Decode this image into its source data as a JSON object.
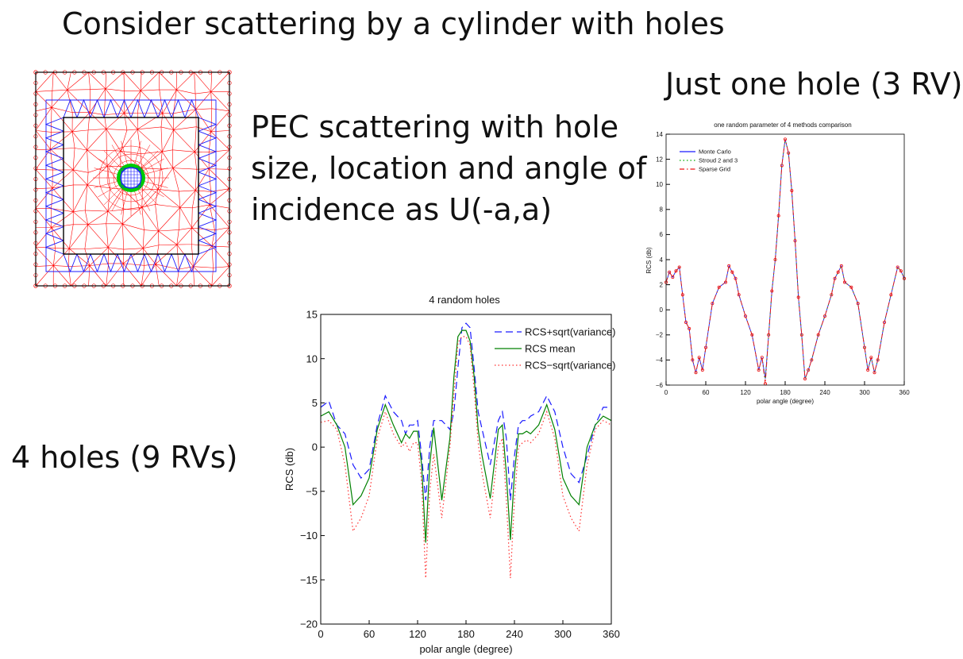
{
  "slide": {
    "title": "Consider scattering by a cylinder with holes",
    "description_lines": [
      "PEC scattering with hole",
      "size, location and angle of",
      "incidence as U(-a,a)"
    ],
    "one_hole_label": "Just one hole (3 RV)",
    "four_holes_label": "4 holes (9 RVs)"
  },
  "colors": {
    "mesh_outer": "#ff0000",
    "mesh_inner": "#1a1aff",
    "mesh_hole": "#00cc00",
    "frame": "#000000"
  },
  "chart_data": [
    {
      "type": "line",
      "title": "4 random holes",
      "xlabel": "polar angle (degree)",
      "ylabel": "RCS (db)",
      "xlim": [
        0,
        360
      ],
      "ylim": [
        -20,
        15
      ],
      "xticks": [
        0,
        60,
        120,
        180,
        240,
        300,
        360
      ],
      "yticks": [
        15,
        10,
        5,
        0,
        -5,
        -10,
        -15,
        -20
      ],
      "legend_position": "top-right",
      "x": [
        0,
        10,
        20,
        30,
        40,
        50,
        60,
        70,
        80,
        90,
        100,
        105,
        110,
        115,
        120,
        125,
        130,
        135,
        140,
        150,
        160,
        165,
        170,
        175,
        180,
        185,
        190,
        195,
        200,
        210,
        220,
        225,
        230,
        235,
        240,
        245,
        250,
        255,
        260,
        270,
        280,
        290,
        300,
        310,
        320,
        330,
        340,
        350,
        360
      ],
      "series": [
        {
          "name": "RCS+sqrt(variance)",
          "color": "#1a1aff",
          "dash": "dashed",
          "values": [
            4.5,
            5.2,
            2.5,
            1.5,
            -2,
            -3.5,
            -2.5,
            2.5,
            5.8,
            4,
            3,
            1.5,
            2.5,
            2.5,
            3,
            -1,
            -6,
            0,
            3,
            3,
            2,
            4,
            9,
            13.5,
            14,
            13.5,
            9,
            4,
            2,
            -2,
            3,
            4,
            1,
            -6,
            -1,
            2.5,
            3,
            3,
            3.5,
            4,
            5.8,
            4,
            0,
            -3,
            -4,
            -1,
            2.5,
            4.5,
            4.5
          ]
        },
        {
          "name": "RCS mean",
          "color": "#008000",
          "dash": "solid",
          "values": [
            3.5,
            4.0,
            2.5,
            0,
            -6.5,
            -5.5,
            -3.5,
            2.0,
            4.8,
            2.5,
            0.5,
            1.5,
            1.0,
            1.8,
            1.8,
            -2.0,
            -10.8,
            -2.0,
            2.2,
            -6,
            1.0,
            8.0,
            12.5,
            13.2,
            13.2,
            12.0,
            8.0,
            2.0,
            -1.0,
            -5.8,
            2.0,
            2.5,
            -3.0,
            -10.5,
            -3.0,
            1.5,
            1.5,
            1.8,
            1.5,
            2.5,
            4.8,
            2.0,
            -3.5,
            -5.5,
            -6.5,
            0,
            2.5,
            3.5,
            3.0
          ]
        },
        {
          "name": "RCS−sqrt(variance)",
          "color": "#ff3030",
          "dash": "dotted",
          "values": [
            2.8,
            3.0,
            2.0,
            -2,
            -9.5,
            -8,
            -5.5,
            1.0,
            4.0,
            1.5,
            0,
            0.5,
            -0.5,
            0.5,
            0.5,
            -4,
            -14.8,
            -5,
            -0.8,
            -8,
            0,
            6,
            11.8,
            12.5,
            12.5,
            11.5,
            6.5,
            0.5,
            -3,
            -8,
            0,
            1,
            -6,
            -14.8,
            -6,
            0,
            0.5,
            0.8,
            0.5,
            1.5,
            4.0,
            1.0,
            -5.5,
            -8,
            -9.5,
            -2,
            2,
            3,
            2.5
          ]
        }
      ]
    },
    {
      "type": "line",
      "title": "one random parameter of 4 methods comparison",
      "xlabel": "polar angle (degree)",
      "ylabel": "RCS (db)",
      "xlim": [
        0,
        360
      ],
      "ylim": [
        -6,
        14
      ],
      "xticks": [
        0,
        60,
        120,
        180,
        240,
        300,
        360
      ],
      "yticks": [
        14,
        12,
        10,
        8,
        6,
        4,
        2,
        0,
        -2,
        -4,
        -6
      ],
      "legend_position": "top-left",
      "x": [
        0,
        5,
        10,
        15,
        20,
        25,
        30,
        35,
        40,
        45,
        50,
        55,
        60,
        70,
        80,
        90,
        95,
        100,
        105,
        110,
        120,
        130,
        140,
        145,
        150,
        155,
        160,
        165,
        170,
        175,
        180,
        185,
        190,
        195,
        200,
        205,
        210,
        215,
        220,
        230,
        240,
        250,
        255,
        260,
        265,
        270,
        280,
        290,
        300,
        305,
        310,
        315,
        320,
        330,
        340,
        350,
        355,
        360
      ],
      "series": [
        {
          "name": "Monte Carlo",
          "color": "#1a1aff",
          "dash": "solid",
          "values": [
            2.2,
            3.0,
            2.6,
            3.1,
            3.4,
            1.2,
            -1.0,
            -1.5,
            -4.0,
            -5.0,
            -3.8,
            -4.8,
            -3.0,
            0.5,
            1.8,
            2.2,
            3.5,
            3.0,
            2.5,
            1.2,
            -0.5,
            -2.0,
            -4.8,
            -3.8,
            -5.5,
            -2.0,
            1.5,
            4.0,
            7.5,
            11.5,
            13.6,
            12.5,
            9.5,
            5.5,
            1.0,
            -2.0,
            -5.5,
            -4.8,
            -4.0,
            -2.0,
            -0.5,
            1.2,
            2.5,
            3.0,
            3.5,
            2.2,
            1.8,
            0.5,
            -3.0,
            -4.8,
            -3.8,
            -5.0,
            -4.0,
            -1.0,
            1.2,
            3.4,
            3.1,
            2.5
          ]
        },
        {
          "name": "Stroud 2 and 3",
          "color": "#00aa00",
          "dash": "dotted",
          "values": [
            2.2,
            3.0,
            2.6,
            3.1,
            3.4,
            1.2,
            -1.0,
            -1.5,
            -4.0,
            -5.0,
            -3.8,
            -4.8,
            -3.0,
            0.5,
            1.8,
            2.2,
            3.5,
            3.0,
            2.5,
            1.2,
            -0.5,
            -2.0,
            -4.8,
            -3.8,
            -5.5,
            -2.0,
            1.5,
            4.0,
            7.5,
            11.5,
            13.6,
            12.5,
            9.5,
            5.5,
            1.0,
            -2.0,
            -5.5,
            -4.8,
            -4.0,
            -2.0,
            -0.5,
            1.2,
            2.5,
            3.0,
            3.5,
            2.2,
            1.8,
            0.5,
            -3.0,
            -4.8,
            -3.8,
            -5.0,
            -4.0,
            -1.0,
            1.2,
            3.4,
            3.1,
            2.5
          ]
        },
        {
          "name": "Sparse Grid",
          "color": "#ee1111",
          "dash": "dashdot",
          "values": [
            2.2,
            3.0,
            2.6,
            3.1,
            3.4,
            1.2,
            -1.0,
            -1.5,
            -4.0,
            -5.0,
            -3.8,
            -4.8,
            -3.0,
            0.5,
            1.8,
            2.2,
            3.5,
            3.0,
            2.5,
            1.2,
            -0.5,
            -2.0,
            -4.8,
            -3.8,
            -5.9,
            -2.0,
            1.5,
            4.0,
            7.5,
            11.5,
            13.6,
            12.5,
            9.5,
            5.5,
            1.0,
            -2.0,
            -5.5,
            -4.8,
            -4.0,
            -2.0,
            -0.5,
            1.2,
            2.5,
            3.0,
            3.5,
            2.2,
            1.8,
            0.5,
            -3.0,
            -4.8,
            -3.8,
            -5.0,
            -4.0,
            -1.0,
            1.2,
            3.4,
            3.1,
            2.5
          ]
        }
      ]
    }
  ]
}
